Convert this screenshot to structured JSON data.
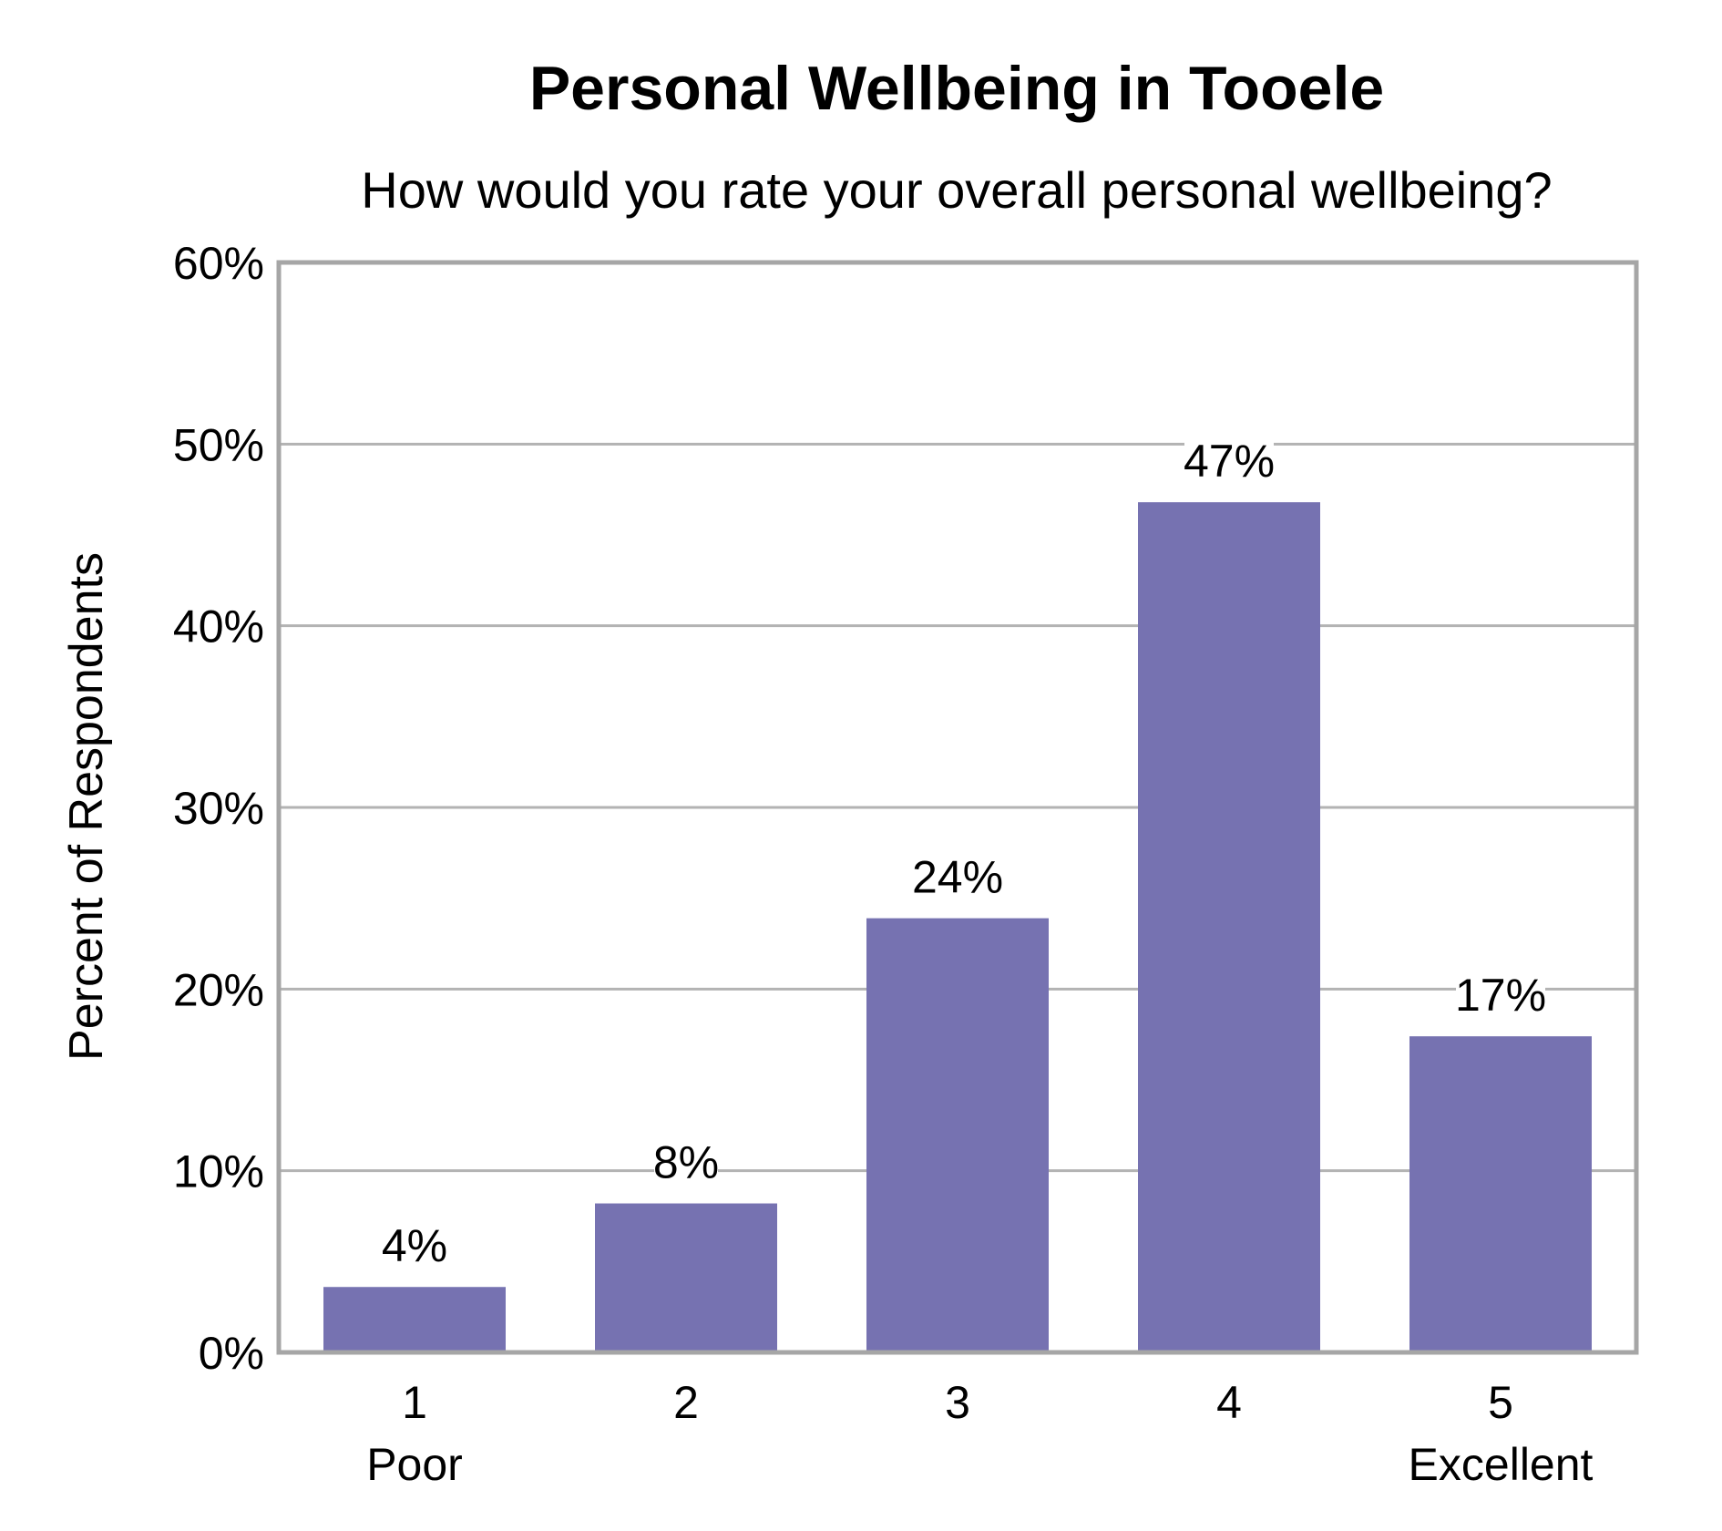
{
  "chart_data": {
    "type": "bar",
    "title": "Personal Wellbeing in Tooele",
    "subtitle": "How would you rate your overall personal wellbeing?",
    "ylabel": "Percent of Respondents",
    "xlabel": "",
    "ylim": [
      0,
      60
    ],
    "yticks": [
      0,
      10,
      20,
      30,
      40,
      50,
      60
    ],
    "ytick_labels": [
      "0%",
      "10%",
      "20%",
      "30%",
      "40%",
      "50%",
      "60%"
    ],
    "categories": [
      "1",
      "2",
      "3",
      "4",
      "5"
    ],
    "category_sublabels": [
      "Poor",
      "",
      "",
      "",
      "Excellent"
    ],
    "values": [
      3.6,
      8.2,
      23.9,
      46.8,
      17.4
    ],
    "data_labels": [
      "4%",
      "8%",
      "24%",
      "47%",
      "17%"
    ],
    "grid": true,
    "bar_color": "#7672b1",
    "grid_color": "#b3b3b3",
    "frame_color": "#a6a6a6"
  }
}
